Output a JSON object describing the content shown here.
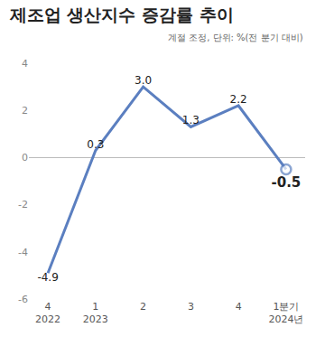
{
  "chart_data": {
    "type": "line",
    "title": "제조업 생산지수 증감률 추이",
    "subtitle": "계절 조정, 단위: %(전 분기 대비)",
    "categories": [
      "4\n2022",
      "1\n2023",
      "2",
      "3",
      "4",
      "1분기\n2024년"
    ],
    "values": [
      -4.9,
      0.3,
      3.0,
      1.3,
      2.2,
      -0.5
    ],
    "value_labels": [
      "-4.9",
      "0.3",
      "3.0",
      "1.3",
      "2.2",
      "-0.5"
    ],
    "color": "#5b7fc0",
    "ylim": [
      -6,
      4
    ],
    "yticks": [
      -6,
      -4,
      -2,
      0,
      2,
      4
    ],
    "grid": false,
    "data_labels": true
  }
}
